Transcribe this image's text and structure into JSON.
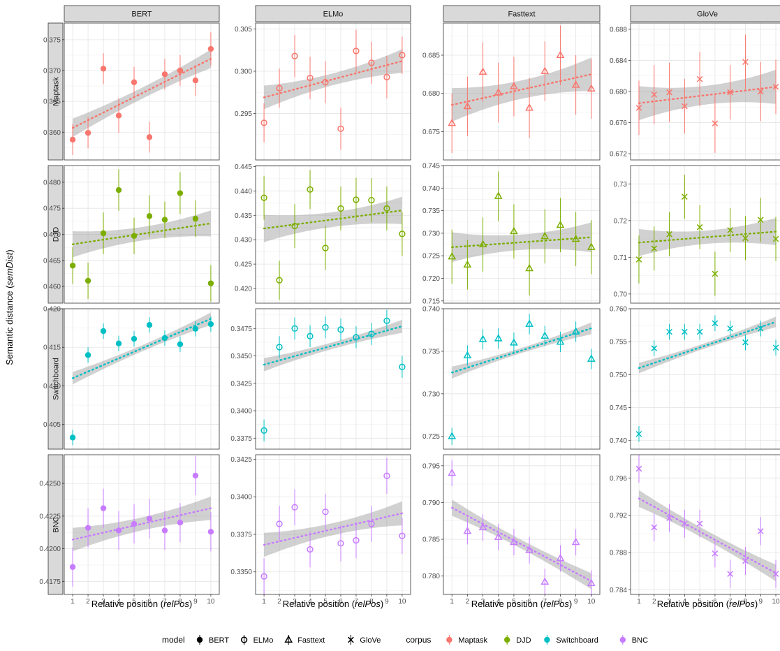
{
  "chart_data": {
    "type": "scatter",
    "ylabel_prefix": "Semantic distance (",
    "ylabel_italic": "semDist",
    "ylabel_suffix": ")",
    "xlabel_prefix": "Relative position (",
    "xlabel_italic": "relPos",
    "xlabel_suffix": ")",
    "x": [
      1,
      2,
      3,
      4,
      5,
      6,
      7,
      8,
      9,
      10
    ],
    "models": [
      "BERT",
      "ELMo",
      "Fasttext",
      "GloVe"
    ],
    "corpora": [
      "Maptask",
      "DJD",
      "Switchboard",
      "BNC"
    ],
    "legend": {
      "model_title": "model",
      "corpus_title": "corpus",
      "position": "bottom",
      "model_entries": [
        {
          "label": "BERT",
          "shape": "filled-circle"
        },
        {
          "label": "ELMo",
          "shape": "open-circle"
        },
        {
          "label": "Fasttext",
          "shape": "open-triangle"
        },
        {
          "label": "GloVe",
          "shape": "cross"
        }
      ],
      "corpus_entries": [
        {
          "label": "Maptask",
          "color": "#F8766D"
        },
        {
          "label": "DJD",
          "color": "#7CAE00"
        },
        {
          "label": "Switchboard",
          "color": "#00BFC4"
        },
        {
          "label": "BNC",
          "color": "#C77CFF"
        }
      ]
    },
    "panels": [
      {
        "row": "Maptask",
        "col": "BERT",
        "ylim": [
          0.3555,
          0.3777
        ],
        "yticks": [
          "0.360",
          "0.365",
          "0.370",
          "0.375"
        ],
        "y": [
          0.3588,
          0.3599,
          0.3703,
          0.3627,
          0.3681,
          0.3592,
          0.3694,
          0.37,
          0.3684,
          0.3735
        ],
        "err": [
          0.0025,
          0.0025,
          0.0025,
          0.0028,
          0.0025,
          0.0025,
          0.0025,
          0.0025,
          0.0025,
          0.0027
        ],
        "fit": [
          0.3607,
          0.3719
        ],
        "band": [
          0.0015,
          0.0009,
          0.0015
        ]
      },
      {
        "row": "Maptask",
        "col": "ELMo",
        "ylim": [
          0.2895,
          0.3057
        ],
        "yticks": [
          "0.295",
          "0.300",
          "0.305"
        ],
        "y": [
          0.2939,
          0.298,
          0.3018,
          0.2992,
          0.2987,
          0.2932,
          0.3024,
          0.301,
          0.2993,
          0.3019
        ],
        "err": [
          0.0023,
          0.0023,
          0.0025,
          0.0025,
          0.0025,
          0.0025,
          0.0025,
          0.0025,
          0.0025,
          0.0022
        ],
        "fit": [
          0.2969,
          0.3012
        ],
        "band": [
          0.0014,
          0.0007,
          0.0014
        ]
      },
      {
        "row": "Maptask",
        "col": "Fasttext",
        "ylim": [
          0.6713,
          0.6892
        ],
        "yticks": [
          "0.675",
          "0.680",
          "0.685"
        ],
        "y": [
          0.6761,
          0.6783,
          0.6828,
          0.6801,
          0.6809,
          0.6781,
          0.6829,
          0.685,
          0.6811,
          0.6806
        ],
        "err": [
          0.0039,
          0.0039,
          0.0039,
          0.0039,
          0.0039,
          0.0039,
          0.0039,
          0.0039,
          0.0039,
          0.0039
        ],
        "fit": [
          0.6785,
          0.6825
        ],
        "band": [
          0.0022,
          0.0012,
          0.0022
        ]
      },
      {
        "row": "Maptask",
        "col": "GloVe",
        "ylim": [
          0.6712,
          0.6888
        ],
        "yticks": [
          "0.672",
          "0.676",
          "0.680",
          "0.684",
          "0.688"
        ],
        "y": [
          0.6779,
          0.6796,
          0.6799,
          0.6781,
          0.6816,
          0.6759,
          0.6799,
          0.6838,
          0.68,
          0.6806
        ],
        "err": [
          0.0035,
          0.0038,
          0.0038,
          0.0035,
          0.0035,
          0.0038,
          0.0035,
          0.0035,
          0.0038,
          0.0035
        ],
        "fit": [
          0.6785,
          0.6806
        ],
        "band": [
          0.0022,
          0.0012,
          0.0022
        ]
      },
      {
        "row": "DJD",
        "col": "BERT",
        "ylim": [
          0.4568,
          0.4832
        ],
        "yticks": [
          "0.460",
          "0.465",
          "0.470",
          "0.475",
          "0.480"
        ],
        "y": [
          0.464,
          0.4611,
          0.4702,
          0.4785,
          0.4697,
          0.4735,
          0.4728,
          0.4779,
          0.473,
          0.4606
        ],
        "err": [
          0.0035,
          0.0035,
          0.004,
          0.004,
          0.0035,
          0.004,
          0.0035,
          0.004,
          0.0035,
          0.0035
        ],
        "fit": [
          0.4681,
          0.4721
        ],
        "band": [
          0.0025,
          0.0013,
          0.0025
        ]
      },
      {
        "row": "DJD",
        "col": "ELMo",
        "ylim": [
          0.417,
          0.4452
        ],
        "yticks": [
          "0.420",
          "0.425",
          "0.430",
          "0.435",
          "0.440",
          "0.445"
        ],
        "y": [
          0.4386,
          0.4217,
          0.4328,
          0.4403,
          0.4283,
          0.4364,
          0.4382,
          0.4381,
          0.4364,
          0.4312
        ],
        "err": [
          0.0045,
          0.004,
          0.0045,
          0.004,
          0.0045,
          0.0045,
          0.0045,
          0.0045,
          0.0045,
          0.0045
        ],
        "fit": [
          0.4323,
          0.436
        ],
        "band": [
          0.0028,
          0.0015,
          0.0028
        ]
      },
      {
        "row": "DJD",
        "col": "Fasttext",
        "ylim": [
          0.7145,
          0.745
        ],
        "yticks": [
          "0.715",
          "0.720",
          "0.725",
          "0.730",
          "0.735",
          "0.740",
          "0.745"
        ],
        "y": [
          0.7248,
          0.723,
          0.7275,
          0.7382,
          0.7304,
          0.7222,
          0.7293,
          0.7318,
          0.7287,
          0.7269
        ],
        "err": [
          0.006,
          0.0055,
          0.006,
          0.0055,
          0.006,
          0.006,
          0.006,
          0.006,
          0.006,
          0.006
        ],
        "fit": [
          0.7269,
          0.7291
        ],
        "band": [
          0.0033,
          0.0017,
          0.0033
        ]
      },
      {
        "row": "DJD",
        "col": "GloVe",
        "ylim": [
          0.6975,
          0.735
        ],
        "yticks": [
          "0.70",
          "0.71",
          "0.72",
          "0.73"
        ],
        "y": [
          0.7094,
          0.7124,
          0.7163,
          0.7265,
          0.7182,
          0.7055,
          0.7174,
          0.7152,
          0.7202,
          0.715
        ],
        "err": [
          0.0065,
          0.006,
          0.006,
          0.006,
          0.006,
          0.006,
          0.006,
          0.006,
          0.006,
          0.006
        ],
        "fit": [
          0.714,
          0.717
        ],
        "band": [
          0.0037,
          0.0018,
          0.0037
        ]
      },
      {
        "row": "Switchboard",
        "col": "BERT",
        "ylim": [
          0.4018,
          0.42
        ],
        "yticks": [
          "0.405",
          "0.410",
          "0.415",
          "0.420"
        ],
        "y": [
          0.4033,
          0.414,
          0.4171,
          0.4155,
          0.4161,
          0.4179,
          0.4162,
          0.4154,
          0.4174,
          0.418
        ],
        "err": [
          0.001,
          0.001,
          0.001,
          0.001,
          0.001,
          0.001,
          0.001,
          0.001,
          0.001,
          0.001
        ],
        "fit": [
          0.411,
          0.4187
        ],
        "band": [
          0.0008,
          0.0004,
          0.0008
        ]
      },
      {
        "row": "Switchboard",
        "col": "ELMo",
        "ylim": [
          0.3365,
          0.3493
        ],
        "yticks": [
          "0.3375",
          "0.3400",
          "0.3425",
          "0.3450",
          "0.3475"
        ],
        "y": [
          0.3382,
          0.3458,
          0.3475,
          0.3468,
          0.3476,
          0.3474,
          0.3467,
          0.347,
          0.3482,
          0.344
        ],
        "err": [
          0.001,
          0.001,
          0.001,
          0.001,
          0.001,
          0.001,
          0.001,
          0.001,
          0.001,
          0.001
        ],
        "fit": [
          0.3442,
          0.3477
        ],
        "band": [
          0.0006,
          0.0003,
          0.0006
        ]
      },
      {
        "row": "Switchboard",
        "col": "Fasttext",
        "ylim": [
          0.7235,
          0.74
        ],
        "yticks": [
          "0.725",
          "0.730",
          "0.735",
          "0.740"
        ],
        "y": [
          0.725,
          0.7345,
          0.7364,
          0.7365,
          0.736,
          0.7382,
          0.7368,
          0.7361,
          0.7373,
          0.7341
        ],
        "err": [
          0.001,
          0.0012,
          0.0012,
          0.0012,
          0.0012,
          0.0012,
          0.0012,
          0.0012,
          0.0012,
          0.0012
        ],
        "fit": [
          0.7325,
          0.7377
        ],
        "band": [
          0.0007,
          0.0003,
          0.0007
        ]
      },
      {
        "row": "Switchboard",
        "col": "GloVe",
        "ylim": [
          0.7387,
          0.76
        ],
        "yticks": [
          "0.740",
          "0.745",
          "0.750",
          "0.755",
          "0.760"
        ],
        "y": [
          0.741,
          0.754,
          0.7565,
          0.7565,
          0.7565,
          0.7578,
          0.757,
          0.7549,
          0.757,
          0.7541
        ],
        "err": [
          0.0012,
          0.0012,
          0.0012,
          0.0012,
          0.0012,
          0.0012,
          0.0012,
          0.0012,
          0.0012,
          0.0012
        ],
        "fit": [
          0.751,
          0.758
        ],
        "band": [
          0.0008,
          0.0004,
          0.0008
        ]
      },
      {
        "row": "BNC",
        "col": "BERT",
        "ylim": [
          0.4165,
          0.4272
        ],
        "yticks": [
          "0.4175",
          "0.4200",
          "0.4225",
          "0.4250"
        ],
        "y": [
          0.4186,
          0.4216,
          0.4231,
          0.4214,
          0.4219,
          0.4223,
          0.4214,
          0.422,
          0.4256,
          0.4213
        ],
        "err": [
          0.0015,
          0.0015,
          0.0015,
          0.0015,
          0.0015,
          0.0015,
          0.0015,
          0.0015,
          0.0015,
          0.0015
        ],
        "fit": [
          0.4207,
          0.4231
        ],
        "band": [
          0.0009,
          0.0005,
          0.0009
        ]
      },
      {
        "row": "BNC",
        "col": "ELMo",
        "ylim": [
          0.3335,
          0.3428
        ],
        "yticks": [
          "0.3350",
          "0.3375",
          "0.3400",
          "0.3425"
        ],
        "y": [
          0.3347,
          0.3382,
          0.3393,
          0.3365,
          0.339,
          0.3369,
          0.3371,
          0.3382,
          0.3414,
          0.3374
        ],
        "err": [
          0.0012,
          0.0012,
          0.0012,
          0.0012,
          0.0012,
          0.0012,
          0.0012,
          0.0012,
          0.0012,
          0.0012
        ],
        "fit": [
          0.3368,
          0.3389
        ],
        "band": [
          0.0008,
          0.0004,
          0.0008
        ]
      },
      {
        "row": "BNC",
        "col": "Fasttext",
        "ylim": [
          0.7775,
          0.7965
        ],
        "yticks": [
          "0.780",
          "0.785",
          "0.790",
          "0.795"
        ],
        "y": [
          0.794,
          0.7861,
          0.7866,
          0.7853,
          0.7846,
          0.7835,
          0.7792,
          0.7824,
          0.7846,
          0.779
        ],
        "err": [
          0.0018,
          0.0018,
          0.0018,
          0.0018,
          0.0018,
          0.0018,
          0.0018,
          0.0018,
          0.0018,
          0.0018
        ],
        "fit": [
          0.7893,
          0.7793
        ],
        "band": [
          0.0011,
          0.0006,
          0.0011
        ]
      },
      {
        "row": "BNC",
        "col": "GloVe",
        "ylim": [
          0.7835,
          0.7985
        ],
        "yticks": [
          "0.784",
          "0.788",
          "0.792",
          "0.796"
        ],
        "y": [
          0.797,
          0.7907,
          0.7917,
          0.7911,
          0.7911,
          0.7879,
          0.7857,
          0.7871,
          0.7903,
          0.7857
        ],
        "err": [
          0.0015,
          0.0015,
          0.0015,
          0.0015,
          0.0015,
          0.0015,
          0.0015,
          0.0015,
          0.0015,
          0.0015
        ],
        "fit": [
          0.7938,
          0.7858
        ],
        "band": [
          0.0009,
          0.0005,
          0.0009
        ]
      }
    ]
  }
}
